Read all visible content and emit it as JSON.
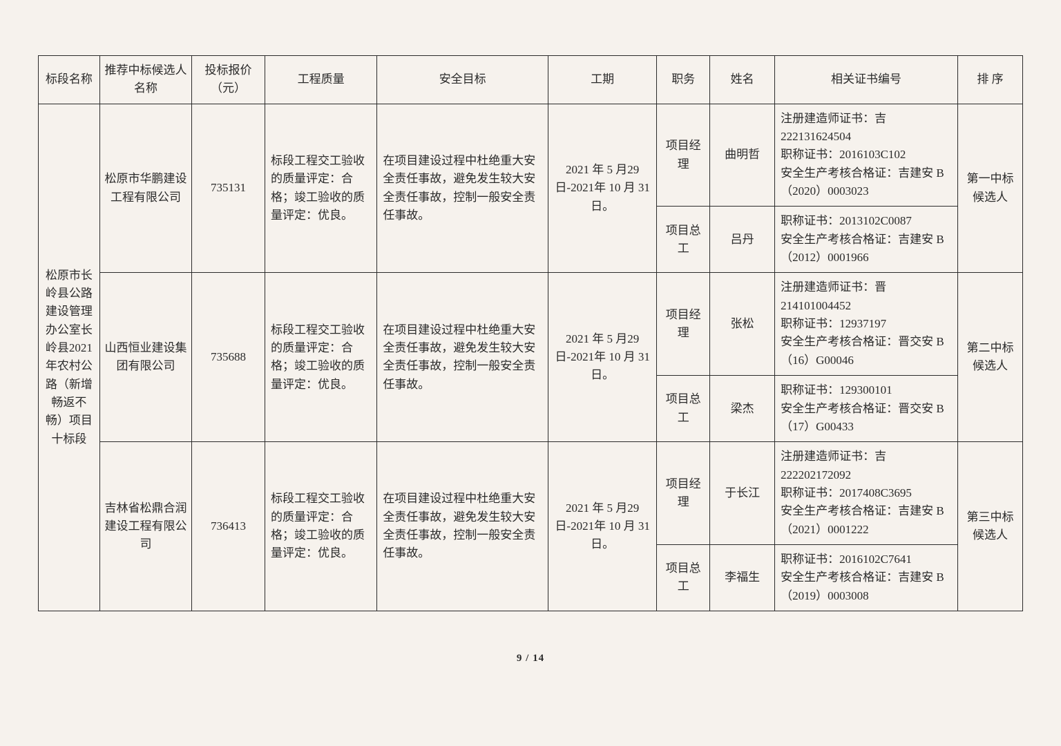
{
  "header": {
    "section": "标段名称",
    "candidate": "推荐中标候选人名称",
    "price": "投标报价（元）",
    "quality": "工程质量",
    "safety": "安全目标",
    "period": "工期",
    "role": "职务",
    "name": "姓名",
    "cert": "相关证书编号",
    "rank": "排 序"
  },
  "section_name": "松原市长岭县公路建设管理办公室长岭县2021 年农村公路（新增畅返不畅）项目十标段",
  "candidates": [
    {
      "company": "松原市华鹏建设工程有限公司",
      "price": "735131",
      "quality": "标段工程交工验收的质量评定：合格；竣工验收的质量评定：优良。",
      "safety": "在项目建设过程中杜绝重大安全责任事故，避免发生较大安全责任事故，控制一般安全责任事故。",
      "period": "2021 年 5 月29 日-2021年 10 月 31日。",
      "rank": "第一中标候选人",
      "people": [
        {
          "role": "项目经理",
          "name": "曲明哲",
          "cert": "注册建造师证书：吉222131624504\n职称证书：2016103C102\n安全生产考核合格证：吉建安 B（2020）0003023"
        },
        {
          "role": "项目总工",
          "name": "吕丹",
          "cert": "职称证书：2013102C0087\n安全生产考核合格证：吉建安 B（2012）0001966"
        }
      ]
    },
    {
      "company": "山西恒业建设集团有限公司",
      "price": "735688",
      "quality": "标段工程交工验收的质量评定：合格；竣工验收的质量评定：优良。",
      "safety": "在项目建设过程中杜绝重大安全责任事故，避免发生较大安全责任事故，控制一般安全责任事故。",
      "period": "2021 年 5 月29 日-2021年 10 月 31日。",
      "rank": "第二中标候选人",
      "people": [
        {
          "role": "项目经理",
          "name": "张松",
          "cert": "注册建造师证书：晋214101004452\n职称证书：12937197\n安全生产考核合格证：晋交安 B（16）G00046"
        },
        {
          "role": "项目总工",
          "name": "梁杰",
          "cert": "职称证书：129300101\n安全生产考核合格证：晋交安 B（17）G00433"
        }
      ]
    },
    {
      "company": "吉林省松鼎合润建设工程有限公司",
      "price": "736413",
      "quality": "标段工程交工验收的质量评定：合格；竣工验收的质量评定：优良。",
      "safety": "在项目建设过程中杜绝重大安全责任事故，避免发生较大安全责任事故，控制一般安全责任事故。",
      "period": "2021 年 5 月29 日-2021年 10 月 31日。",
      "rank": "第三中标候选人",
      "people": [
        {
          "role": "项目经理",
          "name": "于长江",
          "cert": "注册建造师证书：吉222202172092\n职称证书：2017408C3695\n安全生产考核合格证：吉建安 B（2021）0001222"
        },
        {
          "role": "项目总工",
          "name": "李福生",
          "cert": "职称证书：2016102C7641\n安全生产考核合格证：吉建安 B（2019）0003008"
        }
      ]
    }
  ],
  "pager": "9 / 14"
}
